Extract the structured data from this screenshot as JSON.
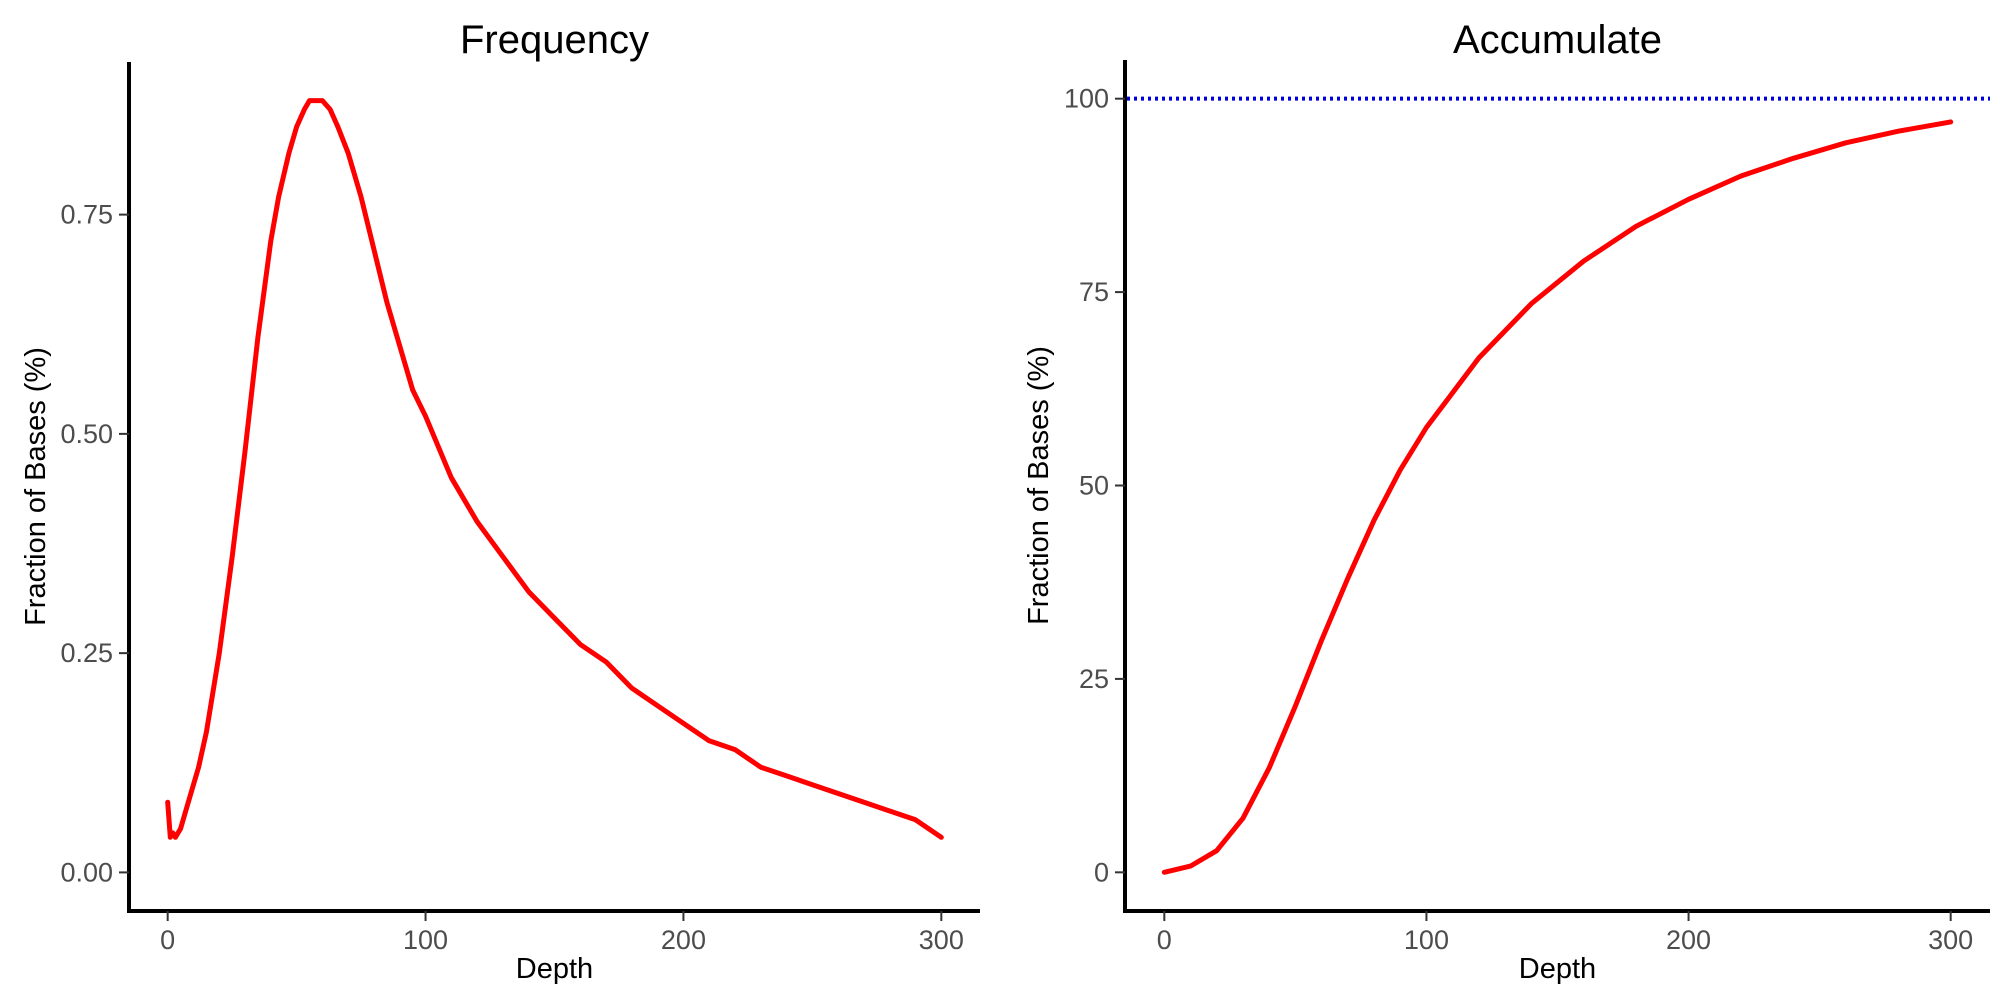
{
  "chart_data": [
    {
      "type": "line",
      "title": "Frequency",
      "xlabel": "Depth",
      "ylabel": "Fraction of Bases (%)",
      "xlim": [
        -15,
        315
      ],
      "ylim": [
        -0.044,
        0.924
      ],
      "xticks": [
        0,
        100,
        200,
        300
      ],
      "yticks": [
        0.0,
        0.25,
        0.5,
        0.75
      ],
      "xtick_labels": [
        "0",
        "100",
        "200",
        "300"
      ],
      "ytick_labels": [
        "0.00",
        "0.25",
        "0.50",
        "0.75"
      ],
      "grid": false,
      "series": [
        {
          "color": "#ff0000",
          "x": [
            0,
            1,
            2,
            3,
            5,
            8,
            12,
            15,
            20,
            25,
            30,
            35,
            40,
            43,
            47,
            50,
            53,
            55,
            58,
            60,
            63,
            66,
            70,
            75,
            80,
            85,
            90,
            95,
            100,
            110,
            120,
            130,
            140,
            150,
            160,
            170,
            180,
            190,
            200,
            210,
            220,
            230,
            240,
            250,
            260,
            270,
            280,
            290,
            295,
            300
          ],
          "y": [
            0.08,
            0.04,
            0.045,
            0.04,
            0.05,
            0.08,
            0.12,
            0.16,
            0.25,
            0.36,
            0.48,
            0.61,
            0.72,
            0.77,
            0.82,
            0.85,
            0.87,
            0.88,
            0.88,
            0.88,
            0.87,
            0.85,
            0.82,
            0.77,
            0.71,
            0.65,
            0.6,
            0.55,
            0.52,
            0.45,
            0.4,
            0.36,
            0.32,
            0.29,
            0.26,
            0.24,
            0.21,
            0.19,
            0.17,
            0.15,
            0.14,
            0.12,
            0.11,
            0.1,
            0.09,
            0.08,
            0.07,
            0.06,
            0.05,
            0.04
          ]
        }
      ]
    },
    {
      "type": "line",
      "title": "Accumulate",
      "xlabel": "Depth",
      "ylabel": "Fraction of Bases (%)",
      "xlim": [
        -15,
        315
      ],
      "ylim": [
        -5,
        105
      ],
      "xticks": [
        0,
        100,
        200,
        300
      ],
      "yticks": [
        0,
        25,
        50,
        75,
        100
      ],
      "xtick_labels": [
        "0",
        "100",
        "200",
        "300"
      ],
      "ytick_labels": [
        "0",
        "25",
        "50",
        "75",
        "100"
      ],
      "grid": false,
      "reference_line": {
        "y": 100,
        "color": "#0000dd",
        "style": "dotted"
      },
      "series": [
        {
          "color": "#ff0000",
          "x": [
            0,
            10,
            20,
            30,
            40,
            50,
            60,
            70,
            80,
            90,
            100,
            120,
            140,
            160,
            180,
            200,
            220,
            240,
            260,
            280,
            300
          ],
          "y": [
            0,
            0.8,
            2.8,
            7,
            13.5,
            21.5,
            30,
            38,
            45.5,
            52,
            57.5,
            66.5,
            73.5,
            79,
            83.5,
            87,
            90,
            92.3,
            94.3,
            95.8,
            97
          ]
        }
      ]
    }
  ]
}
